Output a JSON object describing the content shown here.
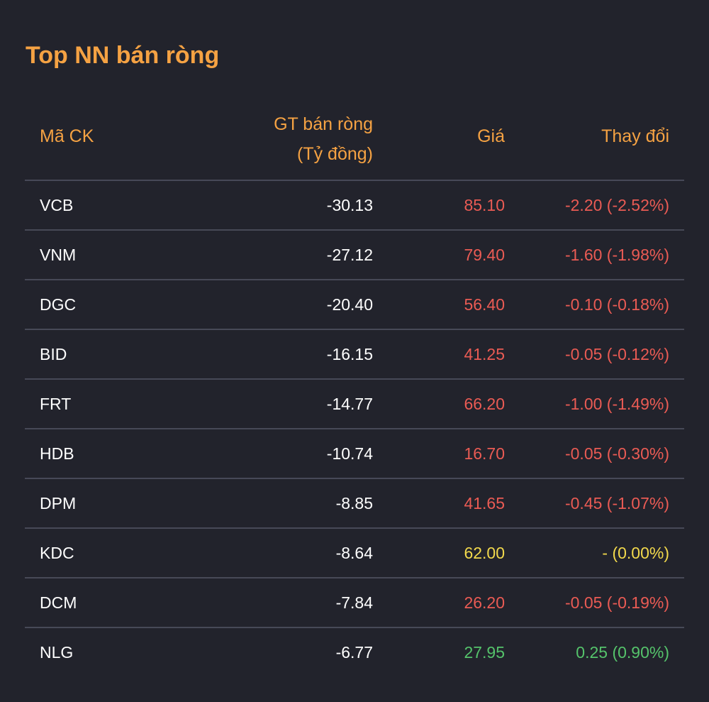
{
  "title": "Top NN bán ròng",
  "colors": {
    "accent": "#f5a243",
    "down": "#ea5b54",
    "flat": "#f2d94c",
    "up": "#55c36b",
    "background": "#22232c"
  },
  "columns": {
    "code": "Mã CK",
    "value_line1": "GT bán ròng",
    "value_line2": "(Tỷ đồng)",
    "price": "Giá",
    "change": "Thay đổi"
  },
  "rows": [
    {
      "code": "VCB",
      "value": "-30.13",
      "price": "85.10",
      "change": "-2.20 (-2.52%)",
      "trend": "down"
    },
    {
      "code": "VNM",
      "value": "-27.12",
      "price": "79.40",
      "change": "-1.60 (-1.98%)",
      "trend": "down"
    },
    {
      "code": "DGC",
      "value": "-20.40",
      "price": "56.40",
      "change": "-0.10 (-0.18%)",
      "trend": "down"
    },
    {
      "code": "BID",
      "value": "-16.15",
      "price": "41.25",
      "change": "-0.05 (-0.12%)",
      "trend": "down"
    },
    {
      "code": "FRT",
      "value": "-14.77",
      "price": "66.20",
      "change": "-1.00 (-1.49%)",
      "trend": "down"
    },
    {
      "code": "HDB",
      "value": "-10.74",
      "price": "16.70",
      "change": "-0.05 (-0.30%)",
      "trend": "down"
    },
    {
      "code": "DPM",
      "value": "-8.85",
      "price": "41.65",
      "change": "-0.45 (-1.07%)",
      "trend": "down"
    },
    {
      "code": "KDC",
      "value": "-8.64",
      "price": "62.00",
      "change": "- (0.00%)",
      "trend": "flat"
    },
    {
      "code": "DCM",
      "value": "-7.84",
      "price": "26.20",
      "change": "-0.05 (-0.19%)",
      "trend": "down"
    },
    {
      "code": "NLG",
      "value": "-6.77",
      "price": "27.95",
      "change": "0.25 (0.90%)",
      "trend": "up"
    }
  ]
}
